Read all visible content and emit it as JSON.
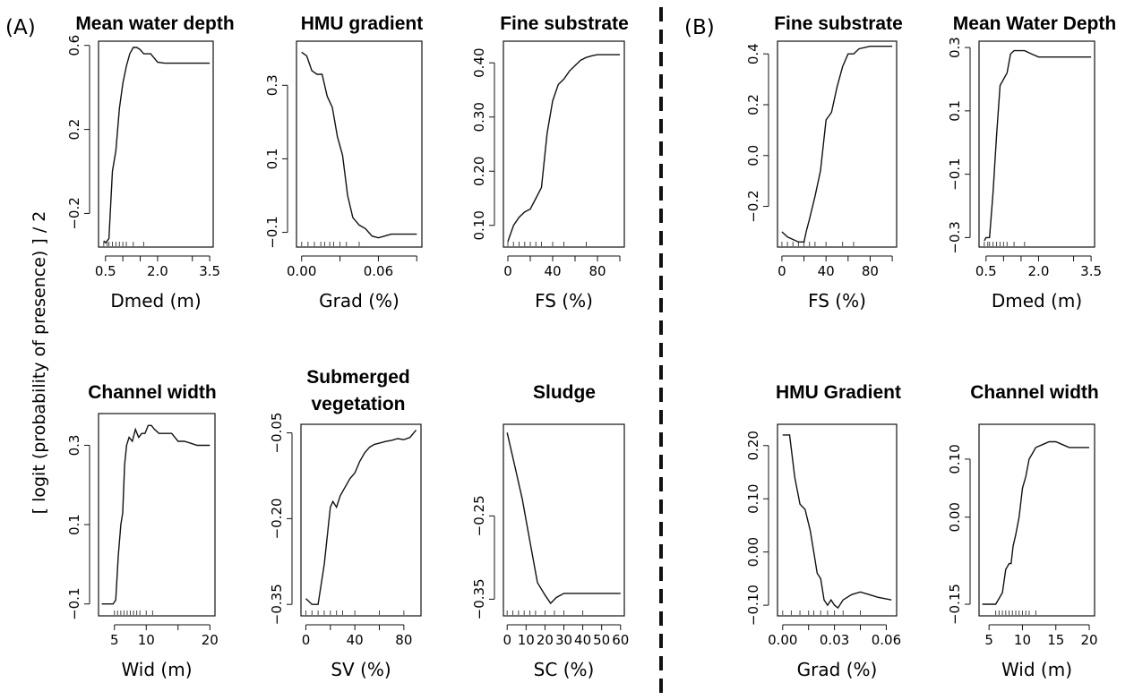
{
  "figure": {
    "panel_labels": [
      "(A)",
      "(B)"
    ],
    "y_axis_label": "[ logit (probability of presence) ] / 2"
  },
  "chart_data": [
    {
      "type": "line",
      "group": "A",
      "title": "Mean water depth",
      "xlabel": "Dmed (m)",
      "xlim": [
        0.3,
        3.6
      ],
      "ylim": [
        -0.36,
        0.62
      ],
      "xticks": [
        {
          "v": 0.5,
          "t": "0.5"
        },
        {
          "v": 1.0,
          "t": ""
        },
        {
          "v": 1.5,
          "t": ""
        },
        {
          "v": 2.0,
          "t": "2.0"
        },
        {
          "v": 3.0,
          "t": ""
        },
        {
          "v": 3.5,
          "t": "3.5"
        }
      ],
      "yticks": [
        {
          "v": -0.2,
          "t": "−0.2"
        },
        {
          "v": 0.2,
          "t": "0.2"
        },
        {
          "v": 0.6,
          "t": "0.6"
        }
      ],
      "rug": [
        0.45,
        0.55,
        0.6,
        0.7,
        0.8,
        0.9,
        1.0,
        1.1,
        1.3,
        1.6
      ],
      "x": [
        0.45,
        0.5,
        0.6,
        0.7,
        0.8,
        0.9,
        1.0,
        1.1,
        1.2,
        1.3,
        1.4,
        1.5,
        1.6,
        1.8,
        1.9,
        2.0,
        2.2,
        2.6,
        3.5
      ],
      "y": [
        -0.33,
        -0.34,
        -0.32,
        0.0,
        0.1,
        0.3,
        0.42,
        0.5,
        0.56,
        0.59,
        0.59,
        0.58,
        0.56,
        0.56,
        0.54,
        0.52,
        0.515,
        0.515,
        0.515
      ]
    },
    {
      "type": "line",
      "group": "A",
      "title": "HMU gradient",
      "xlabel": "Grad (%)",
      "xlim": [
        -0.004,
        0.094
      ],
      "ylim": [
        -0.14,
        0.42
      ],
      "xticks": [
        {
          "v": 0.0,
          "t": "0.00"
        },
        {
          "v": 0.03,
          "t": ""
        },
        {
          "v": 0.06,
          "t": "0.06"
        },
        {
          "v": 0.09,
          "t": ""
        }
      ],
      "yticks": [
        {
          "v": -0.1,
          "t": "−0.1"
        },
        {
          "v": 0.1,
          "t": "0.1"
        },
        {
          "v": 0.3,
          "t": "0.3"
        }
      ],
      "rug": [
        0.0,
        0.005,
        0.01,
        0.015,
        0.018,
        0.022,
        0.025,
        0.03,
        0.035,
        0.045
      ],
      "x": [
        0.0,
        0.004,
        0.008,
        0.012,
        0.016,
        0.02,
        0.024,
        0.028,
        0.032,
        0.036,
        0.04,
        0.045,
        0.05,
        0.055,
        0.06,
        0.065,
        0.07,
        0.09
      ],
      "y": [
        0.39,
        0.38,
        0.34,
        0.33,
        0.33,
        0.27,
        0.24,
        0.16,
        0.11,
        0.0,
        -0.06,
        -0.08,
        -0.09,
        -0.11,
        -0.115,
        -0.11,
        -0.105,
        -0.105
      ]
    },
    {
      "type": "line",
      "group": "A",
      "title": "Fine substrate",
      "xlabel": "FS (%)",
      "xlim": [
        -4,
        104
      ],
      "ylim": [
        0.06,
        0.44
      ],
      "xticks": [
        {
          "v": 0,
          "t": "0"
        },
        {
          "v": 20,
          "t": ""
        },
        {
          "v": 40,
          "t": "40"
        },
        {
          "v": 60,
          "t": ""
        },
        {
          "v": 80,
          "t": "80"
        },
        {
          "v": 100,
          "t": ""
        }
      ],
      "yticks": [
        {
          "v": 0.1,
          "t": "0.10"
        },
        {
          "v": 0.2,
          "t": "0.20"
        },
        {
          "v": 0.3,
          "t": "0.30"
        },
        {
          "v": 0.4,
          "t": "0.40"
        }
      ],
      "rug": [
        0,
        5,
        10,
        15,
        20,
        25,
        30,
        40,
        50,
        70
      ],
      "x": [
        0,
        5,
        10,
        15,
        20,
        25,
        30,
        35,
        40,
        45,
        50,
        55,
        60,
        65,
        70,
        75,
        80,
        90,
        100
      ],
      "y": [
        0.07,
        0.1,
        0.115,
        0.125,
        0.13,
        0.15,
        0.17,
        0.27,
        0.33,
        0.36,
        0.37,
        0.385,
        0.395,
        0.405,
        0.41,
        0.413,
        0.415,
        0.415,
        0.415
      ]
    },
    {
      "type": "line",
      "group": "A",
      "title": "Channel width",
      "xlabel": "Wid (m)",
      "xlim": [
        2.5,
        20.8
      ],
      "ylim": [
        -0.13,
        0.38
      ],
      "xticks": [
        {
          "v": 5,
          "t": "5"
        },
        {
          "v": 10,
          "t": "10"
        },
        {
          "v": 15,
          "t": ""
        },
        {
          "v": 20,
          "t": "20"
        }
      ],
      "yticks": [
        {
          "v": -0.1,
          "t": "−0.1"
        },
        {
          "v": 0.1,
          "t": "0.1"
        },
        {
          "v": 0.3,
          "t": "0.3"
        }
      ],
      "rug": [
        5.0,
        5.5,
        6.0,
        6.5,
        7.0,
        7.5,
        8.0,
        8.5,
        9.0,
        10.0,
        11.0
      ],
      "x": [
        3,
        4,
        4.8,
        5.2,
        5.6,
        6.0,
        6.3,
        6.6,
        6.9,
        7.3,
        7.8,
        8.3,
        8.8,
        9.3,
        9.8,
        10.3,
        10.8,
        11.3,
        12,
        13,
        14,
        15,
        16,
        17,
        18,
        20
      ],
      "y": [
        -0.1,
        -0.1,
        -0.1,
        -0.09,
        0.02,
        0.1,
        0.13,
        0.25,
        0.3,
        0.32,
        0.31,
        0.34,
        0.32,
        0.33,
        0.33,
        0.35,
        0.35,
        0.34,
        0.33,
        0.33,
        0.33,
        0.31,
        0.31,
        0.305,
        0.3,
        0.3
      ]
    },
    {
      "type": "line",
      "group": "A",
      "title": "Submerged vegetation",
      "xlabel": "SV (%)",
      "xlim": [
        -4,
        94
      ],
      "ylim": [
        -0.37,
        -0.035
      ],
      "xticks": [
        {
          "v": 0,
          "t": "0"
        },
        {
          "v": 20,
          "t": ""
        },
        {
          "v": 40,
          "t": "40"
        },
        {
          "v": 60,
          "t": ""
        },
        {
          "v": 80,
          "t": "80"
        }
      ],
      "yticks": [
        {
          "v": -0.35,
          "t": "−0.35"
        },
        {
          "v": -0.2,
          "t": "−0.20"
        },
        {
          "v": -0.05,
          "t": "−0.05"
        }
      ],
      "rug": [
        0,
        5,
        10,
        15,
        20,
        25,
        30,
        40,
        60,
        80
      ],
      "x": [
        0,
        5,
        10,
        15,
        20,
        22,
        25,
        28,
        32,
        36,
        40,
        44,
        48,
        52,
        56,
        60,
        65,
        70,
        75,
        80,
        85,
        90
      ],
      "y": [
        -0.34,
        -0.35,
        -0.35,
        -0.28,
        -0.18,
        -0.17,
        -0.18,
        -0.16,
        -0.145,
        -0.13,
        -0.12,
        -0.1,
        -0.085,
        -0.075,
        -0.07,
        -0.068,
        -0.065,
        -0.063,
        -0.06,
        -0.062,
        -0.058,
        -0.045
      ]
    },
    {
      "type": "line",
      "group": "A",
      "title": "Sludge",
      "xlabel": "SC (%)",
      "xlim": [
        -2,
        62
      ],
      "ylim": [
        -0.37,
        -0.14
      ],
      "xticks": [
        {
          "v": 0,
          "t": "0"
        },
        {
          "v": 10,
          "t": "10"
        },
        {
          "v": 20,
          "t": "20"
        },
        {
          "v": 30,
          "t": "30"
        },
        {
          "v": 40,
          "t": "40"
        },
        {
          "v": 50,
          "t": "50"
        },
        {
          "v": 60,
          "t": "60"
        }
      ],
      "yticks": [
        {
          "v": -0.35,
          "t": "−0.35"
        },
        {
          "v": -0.25,
          "t": "−0.25"
        }
      ],
      "rug": [
        0,
        3,
        6,
        9,
        12,
        15,
        20,
        25,
        30,
        40
      ],
      "x": [
        0,
        4,
        8,
        12,
        16,
        20,
        23,
        26,
        30,
        40,
        50,
        60
      ],
      "y": [
        -0.15,
        -0.19,
        -0.23,
        -0.28,
        -0.33,
        -0.345,
        -0.355,
        -0.348,
        -0.343,
        -0.343,
        -0.343,
        -0.343
      ]
    },
    {
      "type": "line",
      "group": "B",
      "title": "Fine substrate",
      "xlabel": "FS (%)",
      "xlim": [
        -4,
        104
      ],
      "ylim": [
        -0.36,
        0.45
      ],
      "xticks": [
        {
          "v": 0,
          "t": "0"
        },
        {
          "v": 20,
          "t": ""
        },
        {
          "v": 40,
          "t": "40"
        },
        {
          "v": 60,
          "t": ""
        },
        {
          "v": 80,
          "t": "80"
        },
        {
          "v": 100,
          "t": ""
        }
      ],
      "yticks": [
        {
          "v": -0.2,
          "t": "−0.2"
        },
        {
          "v": 0.0,
          "t": "0.0"
        },
        {
          "v": 0.2,
          "t": "0.2"
        },
        {
          "v": 0.4,
          "t": "0.4"
        }
      ],
      "rug": [
        0,
        5,
        10,
        15,
        20,
        25,
        30,
        40,
        55,
        65
      ],
      "x": [
        0,
        5,
        10,
        15,
        20,
        22,
        25,
        30,
        35,
        40,
        45,
        50,
        55,
        60,
        65,
        70,
        80,
        90,
        100
      ],
      "y": [
        -0.3,
        -0.32,
        -0.33,
        -0.34,
        -0.34,
        -0.3,
        -0.25,
        -0.16,
        -0.06,
        0.14,
        0.17,
        0.27,
        0.35,
        0.4,
        0.4,
        0.42,
        0.43,
        0.43,
        0.43
      ]
    },
    {
      "type": "line",
      "group": "B",
      "title": "Mean Water Depth",
      "xlabel": "Dmed (m)",
      "xlim": [
        0.3,
        3.6
      ],
      "ylim": [
        -0.33,
        0.32
      ],
      "xticks": [
        {
          "v": 0.5,
          "t": "0.5"
        },
        {
          "v": 1.0,
          "t": ""
        },
        {
          "v": 1.5,
          "t": ""
        },
        {
          "v": 2.0,
          "t": "2.0"
        },
        {
          "v": 3.0,
          "t": ""
        },
        {
          "v": 3.5,
          "t": "3.5"
        }
      ],
      "yticks": [
        {
          "v": -0.3,
          "t": "−0.3"
        },
        {
          "v": -0.1,
          "t": "−0.1"
        },
        {
          "v": 0.1,
          "t": "0.1"
        },
        {
          "v": 0.3,
          "t": "0.3"
        }
      ],
      "rug": [
        0.45,
        0.55,
        0.6,
        0.7,
        0.8,
        0.9,
        1.0,
        1.1,
        1.3,
        1.6
      ],
      "x": [
        0.45,
        0.5,
        0.6,
        0.7,
        0.8,
        0.9,
        1.0,
        1.1,
        1.2,
        1.3,
        1.4,
        1.5,
        1.6,
        1.8,
        2.0,
        2.2,
        2.6,
        3.0,
        3.5
      ],
      "y": [
        -0.31,
        -0.3,
        -0.3,
        -0.16,
        0.02,
        0.18,
        0.2,
        0.22,
        0.28,
        0.29,
        0.29,
        0.29,
        0.29,
        0.28,
        0.27,
        0.27,
        0.27,
        0.27,
        0.27
      ]
    },
    {
      "type": "line",
      "group": "B",
      "title": "HMU Gradient",
      "xlabel": "Grad (%)",
      "xlim": [
        -0.003,
        0.066
      ],
      "ylim": [
        -0.12,
        0.24
      ],
      "xticks": [
        {
          "v": 0.0,
          "t": "0.00"
        },
        {
          "v": 0.015,
          "t": ""
        },
        {
          "v": 0.03,
          "t": "0.03"
        },
        {
          "v": 0.045,
          "t": ""
        },
        {
          "v": 0.06,
          "t": "0.06"
        }
      ],
      "yticks": [
        {
          "v": -0.1,
          "t": "−0.10"
        },
        {
          "v": 0.0,
          "t": "0.00"
        },
        {
          "v": 0.1,
          "t": "0.10"
        },
        {
          "v": 0.2,
          "t": "0.20"
        }
      ],
      "rug": [
        0.0,
        0.005,
        0.01,
        0.015,
        0.018,
        0.022,
        0.026,
        0.03,
        0.035,
        0.045
      ],
      "x": [
        0.0,
        0.004,
        0.007,
        0.01,
        0.013,
        0.016,
        0.018,
        0.02,
        0.022,
        0.024,
        0.026,
        0.028,
        0.03,
        0.032,
        0.035,
        0.04,
        0.045,
        0.05,
        0.055,
        0.063
      ],
      "y": [
        0.22,
        0.22,
        0.14,
        0.09,
        0.08,
        0.04,
        0.0,
        -0.04,
        -0.05,
        -0.09,
        -0.1,
        -0.09,
        -0.1,
        -0.105,
        -0.09,
        -0.08,
        -0.075,
        -0.08,
        -0.085,
        -0.09
      ]
    },
    {
      "type": "line",
      "group": "B",
      "title": "Channel width",
      "xlabel": "Wid (m)",
      "xlim": [
        3.5,
        20.8
      ],
      "ylim": [
        -0.17,
        0.16
      ],
      "xticks": [
        {
          "v": 5,
          "t": "5"
        },
        {
          "v": 10,
          "t": "10"
        },
        {
          "v": 15,
          "t": "15"
        },
        {
          "v": 20,
          "t": "20"
        }
      ],
      "yticks": [
        {
          "v": -0.15,
          "t": "−0.15"
        },
        {
          "v": 0.0,
          "t": "0.00"
        },
        {
          "v": 0.1,
          "t": "0.10"
        }
      ],
      "rug": [
        6.0,
        6.5,
        7.0,
        7.5,
        8.0,
        8.5,
        9.0,
        9.5,
        10.0,
        10.5,
        11.0,
        12.0
      ],
      "x": [
        4,
        5,
        6,
        6.5,
        7,
        7.5,
        8,
        8.3,
        8.6,
        9,
        9.5,
        10,
        10.5,
        11,
        11.5,
        12,
        13,
        14,
        15,
        16,
        17,
        18,
        20
      ],
      "y": [
        -0.15,
        -0.15,
        -0.15,
        -0.14,
        -0.13,
        -0.09,
        -0.08,
        -0.08,
        -0.05,
        -0.03,
        0.0,
        0.05,
        0.07,
        0.1,
        0.11,
        0.12,
        0.125,
        0.13,
        0.13,
        0.125,
        0.12,
        0.12,
        0.12
      ]
    }
  ]
}
